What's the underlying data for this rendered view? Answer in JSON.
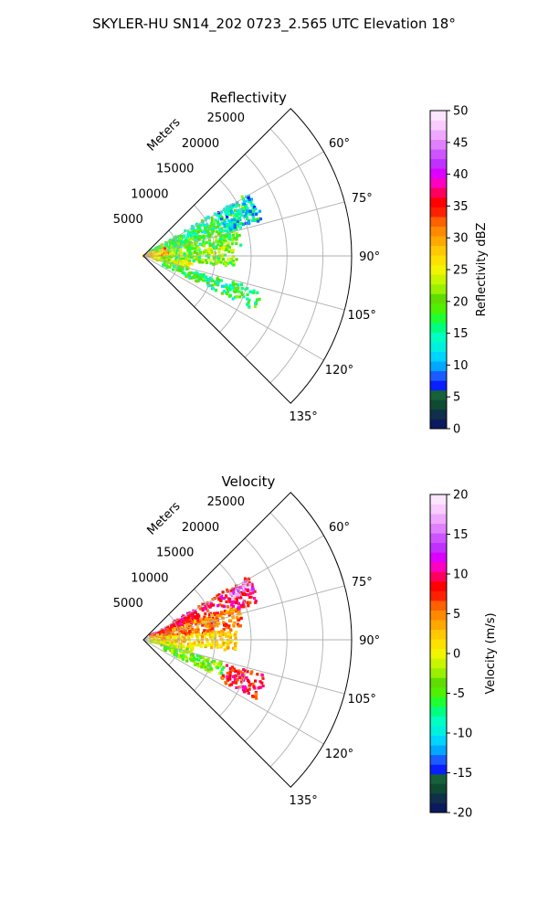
{
  "figure": {
    "suptitle": "SKYLER-HU  SN14_202  0723_2.565 UTC Elevation 18°"
  },
  "chart_data": [
    {
      "type": "heatmap",
      "projection": "polar sector (PPI)",
      "title": "Reflectivity",
      "range_label": "Meters",
      "range_ticks": [
        5000,
        10000,
        15000,
        20000,
        25000
      ],
      "range_lim": [
        0,
        29000
      ],
      "azimuth_ticks_deg": [
        60,
        75,
        90,
        105,
        120,
        135
      ],
      "azimuth_lim_deg": [
        45,
        135
      ],
      "grid": true,
      "colorbar": {
        "label": "Reflectivity dBZ",
        "range": [
          0,
          50
        ],
        "ticks": [
          0,
          5,
          10,
          15,
          20,
          25,
          30,
          35,
          40,
          45,
          50
        ],
        "colors": [
          "#0b1a5e",
          "#0f2f4a",
          "#0f4a33",
          "#16603a",
          "#0a1fff",
          "#1a5cff",
          "#00a8ff",
          "#00d5ff",
          "#00f0e0",
          "#00ffc0",
          "#00ff80",
          "#20ff30",
          "#50f000",
          "#60dd00",
          "#9af000",
          "#c8f500",
          "#f0f500",
          "#ffe000",
          "#ffc800",
          "#ffa800",
          "#ff8a00",
          "#ff6000",
          "#ff2000",
          "#ff0000",
          "#ff0060",
          "#ff00c0",
          "#dd00ff",
          "#c030ff",
          "#cc55ff",
          "#e080ff",
          "#f0a8ff",
          "#f8ccff",
          "#fbe5ff"
        ]
      },
      "echo_bands": [
        {
          "az": [
            59,
            73
          ],
          "r": [
            1000,
            17000
          ],
          "dbz": 17
        },
        {
          "az": [
            70,
            84
          ],
          "r": [
            1000,
            14000
          ],
          "dbz": 19
        },
        {
          "az": [
            84,
            97
          ],
          "r": [
            1000,
            13000
          ],
          "dbz": 21
        },
        {
          "az": [
            97,
            106
          ],
          "r": [
            1000,
            7000
          ],
          "dbz": 23
        },
        {
          "az": [
            106,
            116
          ],
          "r": [
            3000,
            17500
          ],
          "dbz": 17
        },
        {
          "az": [
            70,
            90
          ],
          "r": [
            0,
            3500
          ],
          "dbz": 29
        },
        {
          "az": [
            60,
            74
          ],
          "r": [
            12000,
            17500
          ],
          "dbz": 12
        }
      ]
    },
    {
      "type": "heatmap",
      "projection": "polar sector (PPI)",
      "title": "Velocity",
      "range_label": "Meters",
      "range_ticks": [
        5000,
        10000,
        15000,
        20000,
        25000
      ],
      "range_lim": [
        0,
        29000
      ],
      "azimuth_ticks_deg": [
        60,
        75,
        90,
        105,
        120,
        135
      ],
      "azimuth_lim_deg": [
        45,
        135
      ],
      "grid": true,
      "colorbar": {
        "label": "Velocity (m/s)",
        "range": [
          -20,
          20
        ],
        "ticks": [
          -20,
          -15,
          -10,
          -5,
          0,
          5,
          10,
          15,
          20
        ],
        "colors": [
          "#0b1a5e",
          "#0f2f4a",
          "#0f4a33",
          "#16603a",
          "#0a1fff",
          "#1a5cff",
          "#00a8ff",
          "#00d5ff",
          "#00f0e0",
          "#00ffc0",
          "#00ff80",
          "#20ff30",
          "#50f000",
          "#60dd00",
          "#9af000",
          "#c8f500",
          "#f0f500",
          "#ffe000",
          "#ffc800",
          "#ffa800",
          "#ff8a00",
          "#ff6000",
          "#ff2000",
          "#ff0000",
          "#ff0060",
          "#ff00c0",
          "#dd00ff",
          "#c030ff",
          "#cc55ff",
          "#e080ff",
          "#f0a8ff",
          "#f8ccff",
          "#fbe5ff"
        ]
      },
      "echo_bands": [
        {
          "az": [
            59,
            73
          ],
          "r": [
            1000,
            17000
          ],
          "vel": 9
        },
        {
          "az": [
            70,
            84
          ],
          "r": [
            1000,
            14000
          ],
          "vel": 5
        },
        {
          "az": [
            84,
            97
          ],
          "r": [
            1000,
            13000
          ],
          "vel": 2
        },
        {
          "az": [
            97,
            106
          ],
          "r": [
            1000,
            7000
          ],
          "vel": -1
        },
        {
          "az": [
            106,
            116
          ],
          "r": [
            3000,
            12000
          ],
          "vel": -4
        },
        {
          "az": [
            106,
            118
          ],
          "r": [
            12000,
            18000
          ],
          "vel": 8
        },
        {
          "az": [
            60,
            66
          ],
          "r": [
            13500,
            17500
          ],
          "vel": 16
        }
      ]
    }
  ]
}
